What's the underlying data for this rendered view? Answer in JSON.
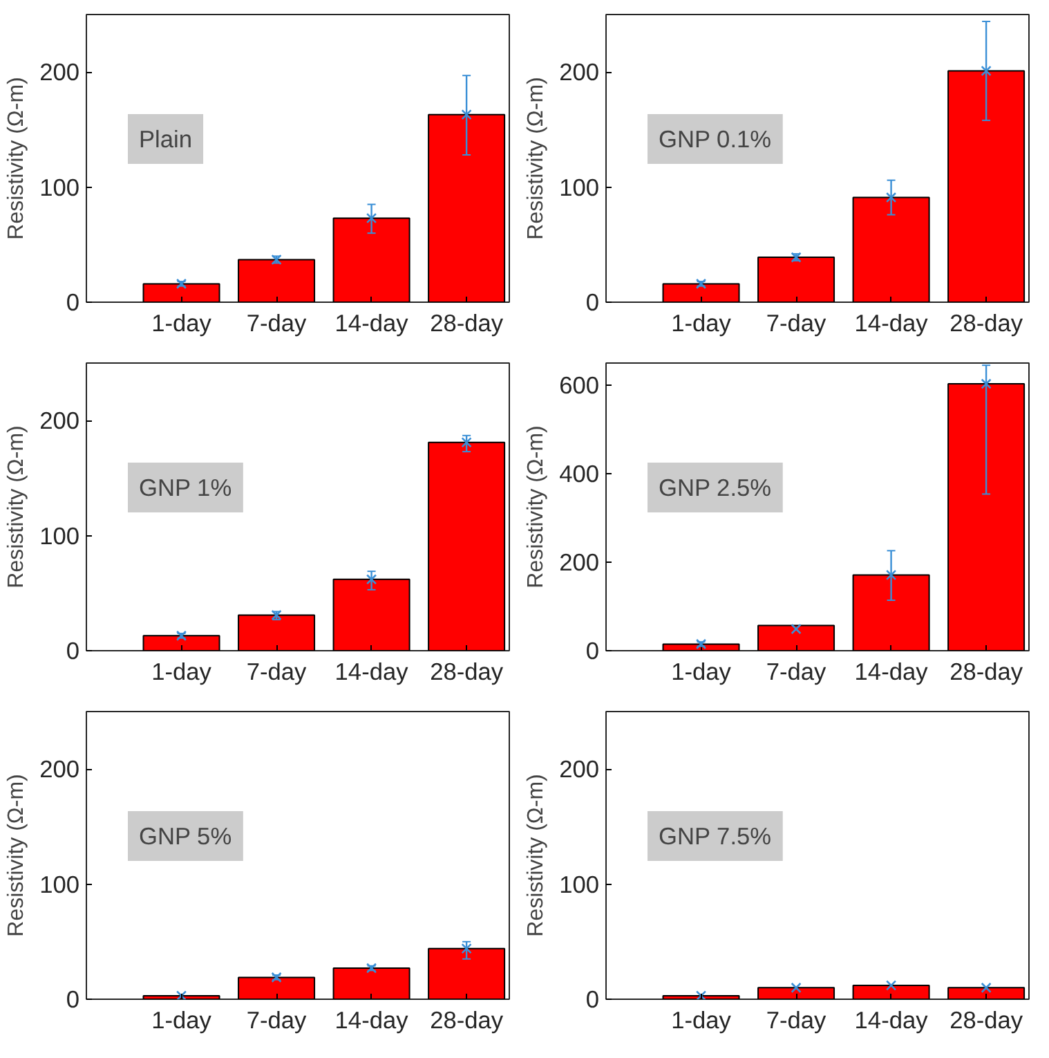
{
  "chart_data": [
    {
      "type": "bar",
      "categories": [
        "1-day",
        "7-day",
        "14-day",
        "28-day"
      ],
      "ylim": [
        0,
        250
      ],
      "yticks": [
        0,
        100,
        200
      ],
      "ylabel": "Resistivity (Ω-m)",
      "annotations": [
        "Plain"
      ],
      "series": [
        {
          "color": "#ff0000",
          "values": [
            16,
            37,
            73,
            163
          ]
        },
        {
          "type": "scatter",
          "marker": "cross",
          "color": "#3a8fd6",
          "values": [
            16,
            37,
            73,
            163
          ],
          "errors": [
            [
              14,
              18
            ],
            [
              34,
              40
            ],
            [
              60,
              85
            ],
            [
              128,
              197
            ]
          ]
        }
      ]
    },
    {
      "type": "bar",
      "categories": [
        "1-day",
        "7-day",
        "14-day",
        "28-day"
      ],
      "ylim": [
        0,
        250
      ],
      "yticks": [
        0,
        100,
        200
      ],
      "ylabel": "Resistivity (Ω-m)",
      "annotations": [
        "GNP 0.1%"
      ],
      "series": [
        {
          "color": "#ff0000",
          "values": [
            16,
            39,
            91,
            201
          ]
        },
        {
          "type": "scatter",
          "marker": "cross",
          "color": "#3a8fd6",
          "values": [
            16,
            39,
            91,
            201
          ],
          "errors": [
            [
              14,
              18
            ],
            [
              36,
              42
            ],
            [
              76,
              106
            ],
            [
              158,
              244
            ]
          ]
        }
      ]
    },
    {
      "type": "bar",
      "categories": [
        "1-day",
        "7-day",
        "14-day",
        "28-day"
      ],
      "ylim": [
        0,
        250
      ],
      "yticks": [
        0,
        100,
        200
      ],
      "ylabel": "Resistivity (Ω-m)",
      "annotations": [
        "GNP 1%"
      ],
      "series": [
        {
          "color": "#ff0000",
          "values": [
            13,
            31,
            62,
            181
          ]
        },
        {
          "type": "scatter",
          "marker": "cross",
          "color": "#3a8fd6",
          "values": [
            13,
            31,
            62,
            181
          ],
          "errors": [
            [
              11,
              15
            ],
            [
              27,
              34
            ],
            [
              53,
              69
            ],
            [
              173,
              187
            ]
          ]
        }
      ]
    },
    {
      "type": "bar",
      "categories": [
        "1-day",
        "7-day",
        "14-day",
        "28-day"
      ],
      "ylim": [
        0,
        650
      ],
      "yticks": [
        0,
        200,
        400,
        600
      ],
      "ylabel": "Resistivity (Ω-m)",
      "annotations": [
        "GNP 2.5%"
      ],
      "series": [
        {
          "color": "#ff0000",
          "values": [
            15,
            57,
            171,
            603
          ]
        },
        {
          "type": "scatter",
          "marker": "cross",
          "color": "#3a8fd6",
          "values": [
            15,
            49,
            171,
            603
          ],
          "errors": [
            [
              10,
              20
            ],
            null,
            [
              114,
              226
            ],
            [
              354,
              645
            ]
          ]
        }
      ]
    },
    {
      "type": "bar",
      "categories": [
        "1-day",
        "7-day",
        "14-day",
        "28-day"
      ],
      "ylim": [
        0,
        250
      ],
      "yticks": [
        0,
        100,
        200
      ],
      "ylabel": "Resistivity (Ω-m)",
      "annotations": [
        "GNP 5%"
      ],
      "series": [
        {
          "color": "#ff0000",
          "values": [
            3,
            19,
            27,
            44
          ]
        },
        {
          "type": "scatter",
          "marker": "cross",
          "color": "#3a8fd6",
          "values": [
            3,
            19,
            27,
            44
          ],
          "errors": [
            null,
            [
              17,
              21
            ],
            [
              25,
              29
            ],
            [
              35,
              50
            ]
          ]
        }
      ]
    },
    {
      "type": "bar",
      "categories": [
        "1-day",
        "7-day",
        "14-day",
        "28-day"
      ],
      "ylim": [
        0,
        250
      ],
      "yticks": [
        0,
        100,
        200
      ],
      "ylabel": "Resistivity (Ω-m)",
      "annotations": [
        "GNP 7.5%"
      ],
      "series": [
        {
          "color": "#ff0000",
          "values": [
            3,
            10,
            12,
            10
          ]
        },
        {
          "type": "scatter",
          "marker": "cross",
          "color": "#3a8fd6",
          "values": [
            3,
            10,
            12,
            10
          ]
        }
      ]
    }
  ]
}
